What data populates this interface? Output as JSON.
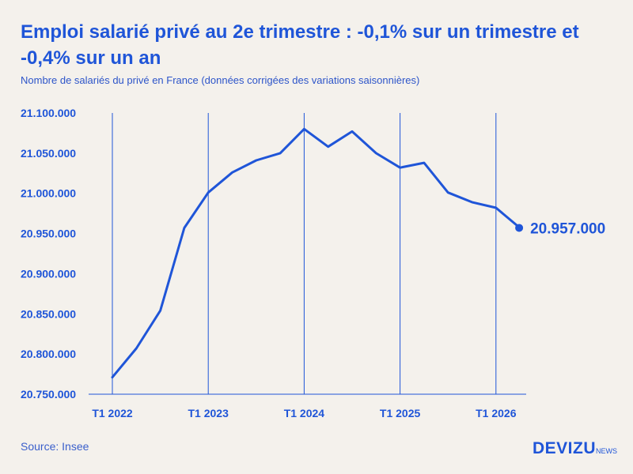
{
  "title": "Emploi salarié privé au 2e trimestre : -0,1% sur un trimestre et -0,4% sur un an",
  "subtitle": "Nombre de salariés du privé en France (données corrigées des variations saisonnières)",
  "source": "Source: Insee",
  "brand": {
    "name": "DEVIZU",
    "suffix": "NEWS"
  },
  "colors": {
    "accent": "#1f55d8",
    "background": "#f4f1ec"
  },
  "chart_data": {
    "type": "line",
    "title": "Emploi salarié privé au 2e trimestre : -0,1% sur un trimestre et -0,4% sur un an",
    "subtitle": "Nombre de salariés du privé en France (données corrigées des variations saisonnières)",
    "xlabel": "",
    "ylabel": "",
    "ylim": [
      20750000,
      21100000
    ],
    "yticks": [
      20750000,
      20800000,
      20850000,
      20900000,
      20950000,
      21000000,
      21050000,
      21100000
    ],
    "ytick_labels": [
      "20.750.000",
      "20.800.000",
      "20.850.000",
      "20.900.000",
      "20.950.000",
      "21.000.000",
      "21.050.000",
      "21.100.000"
    ],
    "xtick_labels": [
      "T1 2022",
      "T1 2023",
      "T1 2024",
      "T1 2025",
      "T1 2026"
    ],
    "x": [
      "T1 2022",
      "T2 2022",
      "T3 2022",
      "T4 2022",
      "T1 2023",
      "T2 2023",
      "T3 2023",
      "T4 2023",
      "T1 2024",
      "T2 2024",
      "T3 2024",
      "T4 2024",
      "T1 2025",
      "T2 2025",
      "T3 2025",
      "T4 2025",
      "T1 2026",
      "T2 2026"
    ],
    "values": [
      20771000,
      20807000,
      20854000,
      20957000,
      21001000,
      21026000,
      21041000,
      21050000,
      21080000,
      21058000,
      21077000,
      21050000,
      21032000,
      21038000,
      21001000,
      20989000,
      20982000,
      20957000
    ],
    "end_label": "20.957.000",
    "grid": "vertical lines at each T1"
  }
}
